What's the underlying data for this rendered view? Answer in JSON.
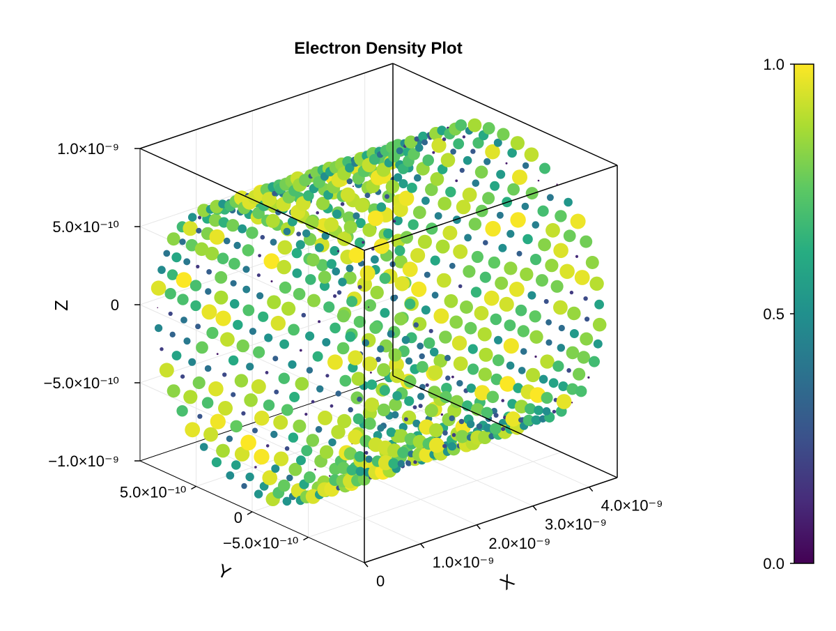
{
  "chart_data": {
    "type": "scatter3d",
    "title": "Electron Density Plot",
    "xlabel": "X",
    "ylabel": "Y",
    "zlabel": "Z",
    "xlim": [
      0,
      4.5e-09
    ],
    "ylim": [
      -1e-09,
      1e-09
    ],
    "zlim": [
      -1e-09,
      1e-09
    ],
    "x_ticks": [
      {
        "value": 0,
        "label": "0"
      },
      {
        "value": 1e-09,
        "label": "1.0×10⁻⁹"
      },
      {
        "value": 2e-09,
        "label": "2.0×10⁻⁹"
      },
      {
        "value": 3e-09,
        "label": "3.0×10⁻⁹"
      },
      {
        "value": 4e-09,
        "label": "4.0×10⁻⁹"
      }
    ],
    "y_ticks": [
      {
        "value": -5e-10,
        "label": "−5.0×10⁻¹⁰"
      },
      {
        "value": 0,
        "label": "0"
      },
      {
        "value": 5e-10,
        "label": "5.0×10⁻¹⁰"
      }
    ],
    "z_ticks": [
      {
        "value": -1e-09,
        "label": "−1.0×10⁻⁹"
      },
      {
        "value": -5e-10,
        "label": "−5.0×10⁻¹⁰"
      },
      {
        "value": 0,
        "label": "0"
      },
      {
        "value": 5e-10,
        "label": "5.0×10⁻¹⁰"
      },
      {
        "value": 1e-09,
        "label": "1.0×10⁻⁹"
      }
    ],
    "grid": true,
    "marker_size_encodes": "density",
    "point_cloud": {
      "shape": "cylindrical shell along x",
      "x_range": [
        0,
        4.5e-09
      ],
      "radius": 9e-10,
      "rings_along_x": 20,
      "points_per_ring": 44,
      "density_range": [
        0,
        1
      ]
    },
    "colorbar": {
      "colormap": "viridis",
      "range": [
        0,
        1
      ],
      "ticks": [
        {
          "value": 0.0,
          "label": "0.0"
        },
        {
          "value": 0.5,
          "label": "0.5"
        },
        {
          "value": 1.0,
          "label": "1.0"
        }
      ],
      "colors": [
        "#440154",
        "#472c7a",
        "#3b518b",
        "#2c718e",
        "#21908d",
        "#27ad81",
        "#5cc863",
        "#aadc32",
        "#fde725"
      ]
    }
  }
}
